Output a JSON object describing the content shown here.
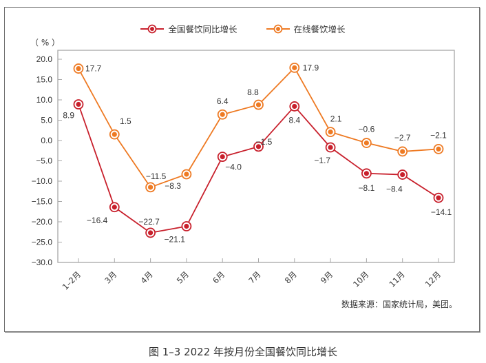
{
  "chart_data": {
    "type": "line",
    "title": "图 1–3   2022 年按月份全国餐饮同比增长",
    "ylabel": "（ % ）",
    "xlabel": "",
    "ylim": [
      -30,
      20
    ],
    "yticks": [
      "20.0",
      "15.0",
      "10.0",
      "5.0",
      "0.0",
      "−5.0",
      "−10.0",
      "−15.0",
      "−20.0",
      "−25.0",
      "−30.0"
    ],
    "ytick_values": [
      20,
      15,
      10,
      5,
      0,
      -5,
      -10,
      -15,
      -20,
      -25,
      -30
    ],
    "categories": [
      "1–2月",
      "3月",
      "4月",
      "5月",
      "6月",
      "7月",
      "8月",
      "9月",
      "10月",
      "11月",
      "12月"
    ],
    "grid": false,
    "legend_position": "top-center",
    "series": [
      {
        "name": "全国餐饮同比增长",
        "color": "#c8202c",
        "values": [
          8.9,
          -16.4,
          -22.7,
          -21.1,
          -4.0,
          -1.5,
          8.4,
          -1.7,
          -8.1,
          -8.4,
          -14.1
        ],
        "labels": [
          "8.9",
          "−16.4",
          "−22.7",
          "−21.1",
          "−4.0",
          "−1.5",
          "8.4",
          "−1.7",
          "−8.1",
          "−8.4",
          "−14.1"
        ]
      },
      {
        "name": "在线餐饮增长",
        "color": "#ee7a23",
        "values": [
          17.7,
          1.5,
          -11.5,
          -8.3,
          6.4,
          8.8,
          17.9,
          2.1,
          -0.6,
          -2.7,
          -2.1
        ],
        "labels": [
          "17.7",
          "1.5",
          "−11.5",
          "−8.3",
          "6.4",
          "8.8",
          "17.9",
          "2.1",
          "−0.6",
          "−2.7",
          "−2.1"
        ]
      }
    ],
    "source": "数据来源：国家统计局，美团。"
  }
}
